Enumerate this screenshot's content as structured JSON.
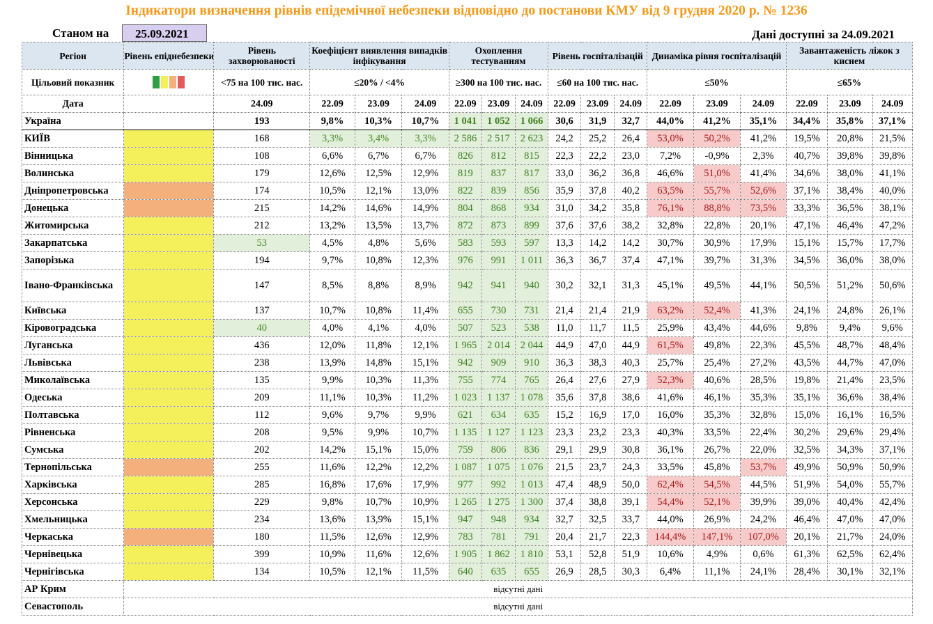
{
  "title": "Індикатори визначення рівнів епідемічної небезпеки відповідно до постанови КМУ від 9 грудня 2020 р. № 1236",
  "as_of_label": "Станом на",
  "as_of_date": "25.09.2021",
  "data_available": "Дані доступні за 24.09.2021",
  "headers": {
    "region": "Регіон",
    "danger_level": "Рівень епіднебезпеки",
    "incidence": "Рівень захворюваності",
    "detection": "Коефіцієнт виявлення випадків інфікування",
    "testing": "Охоплення тестуванням",
    "hosp": "Рівень госпіталізацій",
    "hosp_dyn": "Динаміка рівня госпіталізацій",
    "oxygen": "Завантаженість ліжок з киснем"
  },
  "target": {
    "label": "Цільовий показник",
    "incidence": "<75 на 100 тис. нас.",
    "detection": "≤20% / <4%",
    "testing": "≥300 на 100 тис. нас.",
    "hosp": "≤60 на 100 тис. нас.",
    "hosp_dyn": "≤50%",
    "oxygen": "≤65%",
    "legend_colors": [
      "#2ea043",
      "#f3f05c",
      "#f3b07c",
      "#e15b5b"
    ]
  },
  "date_row": {
    "label": "Дата",
    "incidence": "24.09",
    "dates": [
      "22.09",
      "23.09",
      "24.09"
    ]
  },
  "no_data": "відсутні дані",
  "rows": [
    {
      "name": "Україна",
      "level": "",
      "inc": "193",
      "det": [
        "9,8%",
        "10,3%",
        "10,7%"
      ],
      "test": [
        "1 041",
        "1 052",
        "1 066"
      ],
      "hosp": [
        "30,6",
        "31,9",
        "32,7"
      ],
      "dyn": [
        "44,0%",
        "41,2%",
        "35,1%"
      ],
      "oxy": [
        "34,4%",
        "35,8%",
        "37,1%"
      ]
    },
    {
      "name": "КИЇВ",
      "level": "y",
      "inc": "168",
      "det": [
        "3,3%",
        "3,4%",
        "3,3%"
      ],
      "test": [
        "2 586",
        "2 517",
        "2 623"
      ],
      "hosp": [
        "24,2",
        "25,2",
        "26,4"
      ],
      "dyn": [
        "53,0%",
        "50,2%",
        "41,2%"
      ],
      "oxy": [
        "19,5%",
        "20,8%",
        "21,5%"
      ]
    },
    {
      "name": "Вінницька",
      "level": "y",
      "inc": "108",
      "det": [
        "6,6%",
        "6,7%",
        "6,7%"
      ],
      "test": [
        "826",
        "812",
        "815"
      ],
      "hosp": [
        "22,3",
        "22,2",
        "23,0"
      ],
      "dyn": [
        "7,2%",
        "-0,9%",
        "2,3%"
      ],
      "oxy": [
        "40,7%",
        "39,8%",
        "39,8%"
      ]
    },
    {
      "name": "Волинська",
      "level": "y",
      "inc": "179",
      "det": [
        "12,6%",
        "12,5%",
        "12,9%"
      ],
      "test": [
        "819",
        "837",
        "817"
      ],
      "hosp": [
        "33,0",
        "36,2",
        "36,8"
      ],
      "dyn": [
        "46,6%",
        "51,0%",
        "41,4%"
      ],
      "oxy": [
        "34,6%",
        "38,0%",
        "41,1%"
      ]
    },
    {
      "name": "Дніпропетровська",
      "level": "o",
      "inc": "174",
      "det": [
        "10,5%",
        "12,1%",
        "13,0%"
      ],
      "test": [
        "822",
        "839",
        "856"
      ],
      "hosp": [
        "35,9",
        "37,8",
        "40,2"
      ],
      "dyn": [
        "63,5%",
        "55,7%",
        "52,6%"
      ],
      "oxy": [
        "37,1%",
        "38,4%",
        "40,0%"
      ]
    },
    {
      "name": "Донецька",
      "level": "o",
      "inc": "215",
      "det": [
        "14,2%",
        "14,6%",
        "14,9%"
      ],
      "test": [
        "804",
        "868",
        "934"
      ],
      "hosp": [
        "31,0",
        "34,2",
        "35,8"
      ],
      "dyn": [
        "76,1%",
        "88,8%",
        "73,5%"
      ],
      "oxy": [
        "33,3%",
        "36,5%",
        "38,1%"
      ]
    },
    {
      "name": "Житомирська",
      "level": "y",
      "inc": "212",
      "det": [
        "13,2%",
        "13,5%",
        "13,7%"
      ],
      "test": [
        "872",
        "873",
        "899"
      ],
      "hosp": [
        "37,6",
        "37,6",
        "38,2"
      ],
      "dyn": [
        "32,8%",
        "22,8%",
        "20,1%"
      ],
      "oxy": [
        "47,1%",
        "46,4%",
        "47,2%"
      ]
    },
    {
      "name": "Закарпатська",
      "level": "y",
      "inc": "53",
      "det": [
        "4,5%",
        "4,8%",
        "5,6%"
      ],
      "test": [
        "583",
        "593",
        "597"
      ],
      "hosp": [
        "13,3",
        "14,2",
        "14,2"
      ],
      "dyn": [
        "30,7%",
        "30,9%",
        "17,9%"
      ],
      "oxy": [
        "15,1%",
        "15,7%",
        "17,7%"
      ]
    },
    {
      "name": "Запорізька",
      "level": "y",
      "inc": "194",
      "det": [
        "9,7%",
        "10,8%",
        "12,3%"
      ],
      "test": [
        "976",
        "991",
        "1 011"
      ],
      "hosp": [
        "36,3",
        "36,7",
        "37,4"
      ],
      "dyn": [
        "47,1%",
        "39,7%",
        "31,3%"
      ],
      "oxy": [
        "34,5%",
        "36,0%",
        "38,0%"
      ]
    },
    {
      "name": "Івано-Франківська",
      "level": "y",
      "inc": "147",
      "det": [
        "8,5%",
        "8,8%",
        "8,9%"
      ],
      "test": [
        "942",
        "941",
        "940"
      ],
      "hosp": [
        "30,2",
        "32,1",
        "31,3"
      ],
      "dyn": [
        "45,1%",
        "49,5%",
        "44,1%"
      ],
      "oxy": [
        "50,5%",
        "51,2%",
        "50,6%"
      ]
    },
    {
      "name": "Київська",
      "level": "y",
      "inc": "137",
      "det": [
        "10,7%",
        "10,8%",
        "11,4%"
      ],
      "test": [
        "655",
        "730",
        "731"
      ],
      "hosp": [
        "21,4",
        "21,4",
        "21,9"
      ],
      "dyn": [
        "63,2%",
        "52,4%",
        "41,3%"
      ],
      "oxy": [
        "24,1%",
        "24,8%",
        "26,1%"
      ]
    },
    {
      "name": "Кіровоградська",
      "level": "y",
      "inc": "40",
      "det": [
        "4,0%",
        "4,1%",
        "4,0%"
      ],
      "test": [
        "507",
        "523",
        "538"
      ],
      "hosp": [
        "11,0",
        "11,7",
        "11,5"
      ],
      "dyn": [
        "25,9%",
        "43,4%",
        "44,6%"
      ],
      "oxy": [
        "9,8%",
        "9,4%",
        "9,6%"
      ]
    },
    {
      "name": "Луганська",
      "level": "y",
      "inc": "436",
      "det": [
        "12,0%",
        "11,8%",
        "12,1%"
      ],
      "test": [
        "1 965",
        "2 014",
        "2 044"
      ],
      "hosp": [
        "44,9",
        "47,0",
        "44,9"
      ],
      "dyn": [
        "61,5%",
        "49,8%",
        "22,3%"
      ],
      "oxy": [
        "45,5%",
        "48,7%",
        "48,4%"
      ]
    },
    {
      "name": "Львівська",
      "level": "y",
      "inc": "238",
      "det": [
        "13,9%",
        "14,8%",
        "15,1%"
      ],
      "test": [
        "942",
        "909",
        "910"
      ],
      "hosp": [
        "36,3",
        "38,3",
        "40,3"
      ],
      "dyn": [
        "25,7%",
        "25,4%",
        "27,2%"
      ],
      "oxy": [
        "43,5%",
        "44,7%",
        "47,0%"
      ]
    },
    {
      "name": "Миколаївська",
      "level": "y",
      "inc": "135",
      "det": [
        "9,9%",
        "10,3%",
        "11,3%"
      ],
      "test": [
        "755",
        "774",
        "765"
      ],
      "hosp": [
        "26,4",
        "27,6",
        "27,9"
      ],
      "dyn": [
        "52,3%",
        "40,6%",
        "28,5%"
      ],
      "oxy": [
        "19,8%",
        "21,4%",
        "23,5%"
      ]
    },
    {
      "name": "Одеська",
      "level": "y",
      "inc": "209",
      "det": [
        "11,1%",
        "10,3%",
        "11,2%"
      ],
      "test": [
        "1 023",
        "1 137",
        "1 078"
      ],
      "hosp": [
        "35,6",
        "37,8",
        "38,6"
      ],
      "dyn": [
        "41,6%",
        "46,1%",
        "35,3%"
      ],
      "oxy": [
        "35,1%",
        "36,6%",
        "38,4%"
      ]
    },
    {
      "name": "Полтавська",
      "level": "y",
      "inc": "112",
      "det": [
        "9,6%",
        "9,7%",
        "9,9%"
      ],
      "test": [
        "621",
        "634",
        "635"
      ],
      "hosp": [
        "15,2",
        "16,9",
        "17,0"
      ],
      "dyn": [
        "16,0%",
        "35,3%",
        "32,8%"
      ],
      "oxy": [
        "15,0%",
        "16,1%",
        "16,5%"
      ]
    },
    {
      "name": "Рівненська",
      "level": "y",
      "inc": "208",
      "det": [
        "9,5%",
        "9,9%",
        "10,7%"
      ],
      "test": [
        "1 135",
        "1 127",
        "1 123"
      ],
      "hosp": [
        "23,3",
        "23,2",
        "23,3"
      ],
      "dyn": [
        "40,3%",
        "33,5%",
        "22,4%"
      ],
      "oxy": [
        "30,2%",
        "29,6%",
        "29,4%"
      ]
    },
    {
      "name": "Сумська",
      "level": "y",
      "inc": "202",
      "det": [
        "14,2%",
        "15,1%",
        "15,0%"
      ],
      "test": [
        "759",
        "806",
        "836"
      ],
      "hosp": [
        "29,1",
        "29,9",
        "30,8"
      ],
      "dyn": [
        "36,1%",
        "26,7%",
        "22,0%"
      ],
      "oxy": [
        "32,5%",
        "34,3%",
        "37,1%"
      ]
    },
    {
      "name": "Тернопільська",
      "level": "o",
      "inc": "255",
      "det": [
        "11,6%",
        "12,2%",
        "12,2%"
      ],
      "test": [
        "1 087",
        "1 075",
        "1 076"
      ],
      "hosp": [
        "21,5",
        "23,7",
        "24,3"
      ],
      "dyn": [
        "33,5%",
        "45,8%",
        "53,7%"
      ],
      "oxy": [
        "49,9%",
        "50,9%",
        "50,9%"
      ]
    },
    {
      "name": "Харківська",
      "level": "y",
      "inc": "285",
      "det": [
        "16,8%",
        "17,6%",
        "17,9%"
      ],
      "test": [
        "977",
        "992",
        "1 013"
      ],
      "hosp": [
        "47,4",
        "48,9",
        "50,0"
      ],
      "dyn": [
        "62,4%",
        "54,5%",
        "44,5%"
      ],
      "oxy": [
        "51,9%",
        "54,0%",
        "55,7%"
      ]
    },
    {
      "name": "Херсонська",
      "level": "y",
      "inc": "229",
      "det": [
        "9,8%",
        "10,7%",
        "10,9%"
      ],
      "test": [
        "1 265",
        "1 275",
        "1 300"
      ],
      "hosp": [
        "37,4",
        "38,8",
        "39,1"
      ],
      "dyn": [
        "54,4%",
        "52,1%",
        "39,9%"
      ],
      "oxy": [
        "39,0%",
        "40,4%",
        "42,4%"
      ]
    },
    {
      "name": "Хмельницька",
      "level": "y",
      "inc": "234",
      "det": [
        "13,6%",
        "13,9%",
        "15,1%"
      ],
      "test": [
        "947",
        "948",
        "934"
      ],
      "hosp": [
        "32,7",
        "32,5",
        "33,7"
      ],
      "dyn": [
        "44,0%",
        "26,9%",
        "24,2%"
      ],
      "oxy": [
        "46,4%",
        "47,0%",
        "47,0%"
      ]
    },
    {
      "name": "Черкаська",
      "level": "o",
      "inc": "180",
      "det": [
        "11,5%",
        "12,6%",
        "12,9%"
      ],
      "test": [
        "783",
        "781",
        "791"
      ],
      "hosp": [
        "20,4",
        "21,7",
        "22,3"
      ],
      "dyn": [
        "144,4%",
        "147,1%",
        "107,0%"
      ],
      "oxy": [
        "20,1%",
        "21,7%",
        "24,0%"
      ]
    },
    {
      "name": "Чернівецька",
      "level": "y",
      "inc": "399",
      "det": [
        "10,9%",
        "11,6%",
        "12,6%"
      ],
      "test": [
        "1 905",
        "1 862",
        "1 810"
      ],
      "hosp": [
        "53,1",
        "52,8",
        "51,9"
      ],
      "dyn": [
        "10,6%",
        "4,9%",
        "0,6%"
      ],
      "oxy": [
        "61,3%",
        "62,5%",
        "62,4%"
      ]
    },
    {
      "name": "Чернігівська",
      "level": "y",
      "inc": "134",
      "det": [
        "10,5%",
        "12,1%",
        "11,5%"
      ],
      "test": [
        "640",
        "635",
        "655"
      ],
      "hosp": [
        "26,9",
        "28,5",
        "30,3"
      ],
      "dyn": [
        "6,4%",
        "11,1%",
        "24,1%"
      ],
      "oxy": [
        "28,4%",
        "30,1%",
        "32,1%"
      ]
    }
  ],
  "missing_rows": [
    "АР Крим",
    "Севастополь"
  ]
}
